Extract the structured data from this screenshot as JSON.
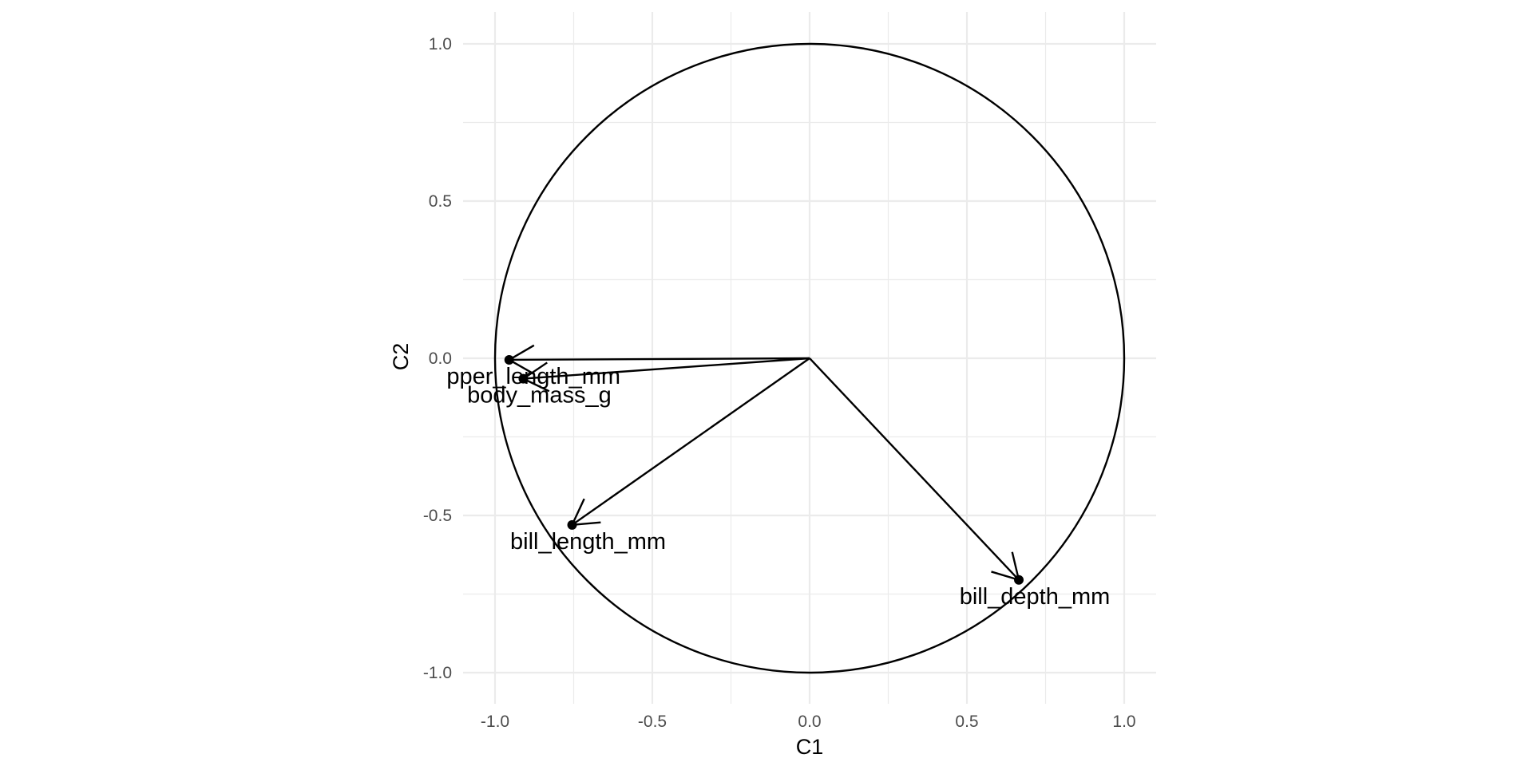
{
  "chart_data": {
    "type": "scatter",
    "title": "",
    "xlabel": "C1",
    "ylabel": "C2",
    "xlim": [
      -1.1,
      1.1
    ],
    "ylim": [
      -1.1,
      1.1
    ],
    "x_ticks": [
      -1.0,
      -0.5,
      0.0,
      0.5,
      1.0
    ],
    "y_ticks": [
      -1.0,
      -0.5,
      0.0,
      0.5,
      1.0
    ],
    "x_tick_labels": [
      "-1.0",
      "-0.5",
      "0.0",
      "0.5",
      "1.0"
    ],
    "y_tick_labels": [
      "-1.0",
      "-0.5",
      "0.0",
      "0.5",
      "1.0"
    ],
    "grid": true,
    "unit_circle": true,
    "aspect": "equal",
    "origin": [
      0,
      0
    ],
    "variables": [
      {
        "label": "flipper_length_mm",
        "x": -0.955,
        "y": -0.005
      },
      {
        "label": "body_mass_g",
        "x": -0.91,
        "y": -0.065
      },
      {
        "label": "bill_length_mm",
        "x": -0.755,
        "y": -0.53
      },
      {
        "label": "bill_depth_mm",
        "x": 0.665,
        "y": -0.705
      }
    ],
    "colors": {
      "line": "#000000",
      "grid": "#ebebeb",
      "tick_text": "#4d4d4d",
      "background": "#ffffff"
    }
  }
}
